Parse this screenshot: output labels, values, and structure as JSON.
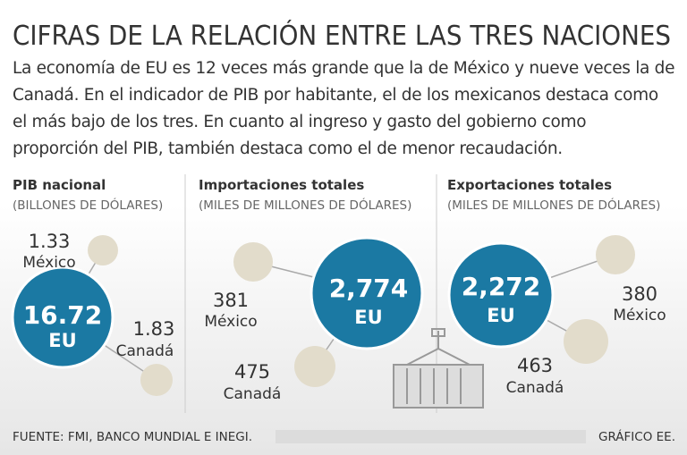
{
  "header": {
    "title": "CIFRAS DE LA RELACIÓN ENTRE LAS TRES NACIONES",
    "intro": "La economía de EU es 12 veces más grande que la de México y nueve veces la de Canadá. En el indicador de PIB por habitante, el de los mexicanos destaca como el más bajo de los tres. En cuanto al ingreso y gasto del gobierno como proporción del PIB, también destaca como el de menor recaudación."
  },
  "panels": [
    {
      "title": "PIB nacional",
      "unit": "(BILLONES DE DÓLARES)",
      "items": [
        {
          "value": "16.72",
          "label": "EU"
        },
        {
          "value": "1.33",
          "label": "México"
        },
        {
          "value": "1.83",
          "label": "Canadá"
        }
      ]
    },
    {
      "title": "Importaciones totales",
      "unit": "(MILES DE MILLONES DE DÓLARES)",
      "items": [
        {
          "value": "2,774",
          "label": "EU"
        },
        {
          "value": "381",
          "label": "México"
        },
        {
          "value": "475",
          "label": "Canadá"
        }
      ]
    },
    {
      "title": "Exportaciones totales",
      "unit": "(MILES DE MILLONES DE DÓLARES)",
      "items": [
        {
          "value": "2,272",
          "label": "EU"
        },
        {
          "value": "380",
          "label": "México"
        },
        {
          "value": "463",
          "label": "Canadá"
        }
      ]
    }
  ],
  "footer": {
    "source": "FUENTE: FMI, BANCO MUNDIAL E INEGI.",
    "credit": "GRÁFICO EE."
  }
}
